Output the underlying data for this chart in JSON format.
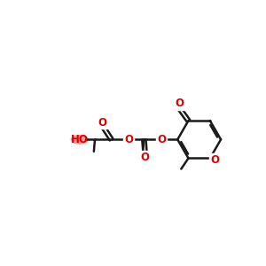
{
  "bg_color": "#ffffff",
  "bond_color": "#1a1a1a",
  "heteroatom_color": "#dd0000",
  "font_size": 8.5,
  "line_width": 1.8,
  "figsize": [
    3.0,
    3.0
  ],
  "dpi": 100,
  "xlim": [
    0,
    10
  ],
  "ylim": [
    2.5,
    8.5
  ]
}
